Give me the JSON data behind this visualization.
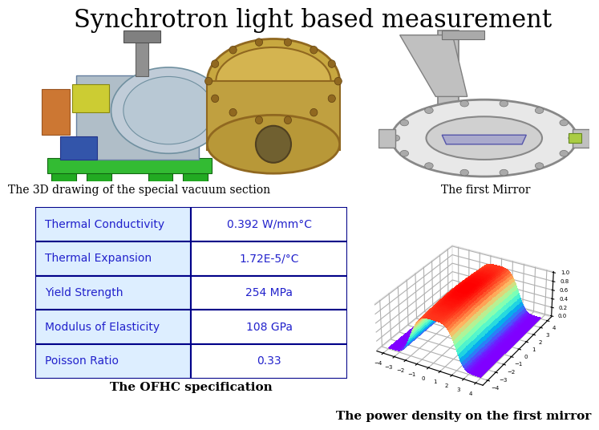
{
  "title": "Synchrotron light based measurement",
  "title_fontsize": 22,
  "title_font": "serif",
  "background_color": "#ffffff",
  "caption_left": "The 3D drawing of the special vacuum section",
  "caption_right_top": "The first Mirror",
  "caption_left_bottom": "The OFHC specification",
  "caption_right_bottom": "The power density on the first mirror",
  "table_rows": [
    [
      "Thermal Conductivity",
      "0.392 W/mm°C"
    ],
    [
      "Thermal Expansion",
      "1.72E-5/°C"
    ],
    [
      "Yield Strength",
      "254 MPa"
    ],
    [
      "Modulus of Elasticity",
      "108 GPa"
    ],
    [
      "Poisson Ratio",
      "0.33"
    ]
  ],
  "table_border_color": "#000088",
  "table_text_color": "#2222cc",
  "table_left_bg": "#ddeeff",
  "table_right_bg": "#ffffff",
  "table_fontsize": 10,
  "img1_bg": "#c8d4e0",
  "img2_bg": "#b8a870",
  "img3_bg": "#88bbdd",
  "caption_fontsize": 10,
  "caption_font": "serif",
  "caption_style": "normal",
  "surface_elev": 30,
  "surface_azim": -60
}
